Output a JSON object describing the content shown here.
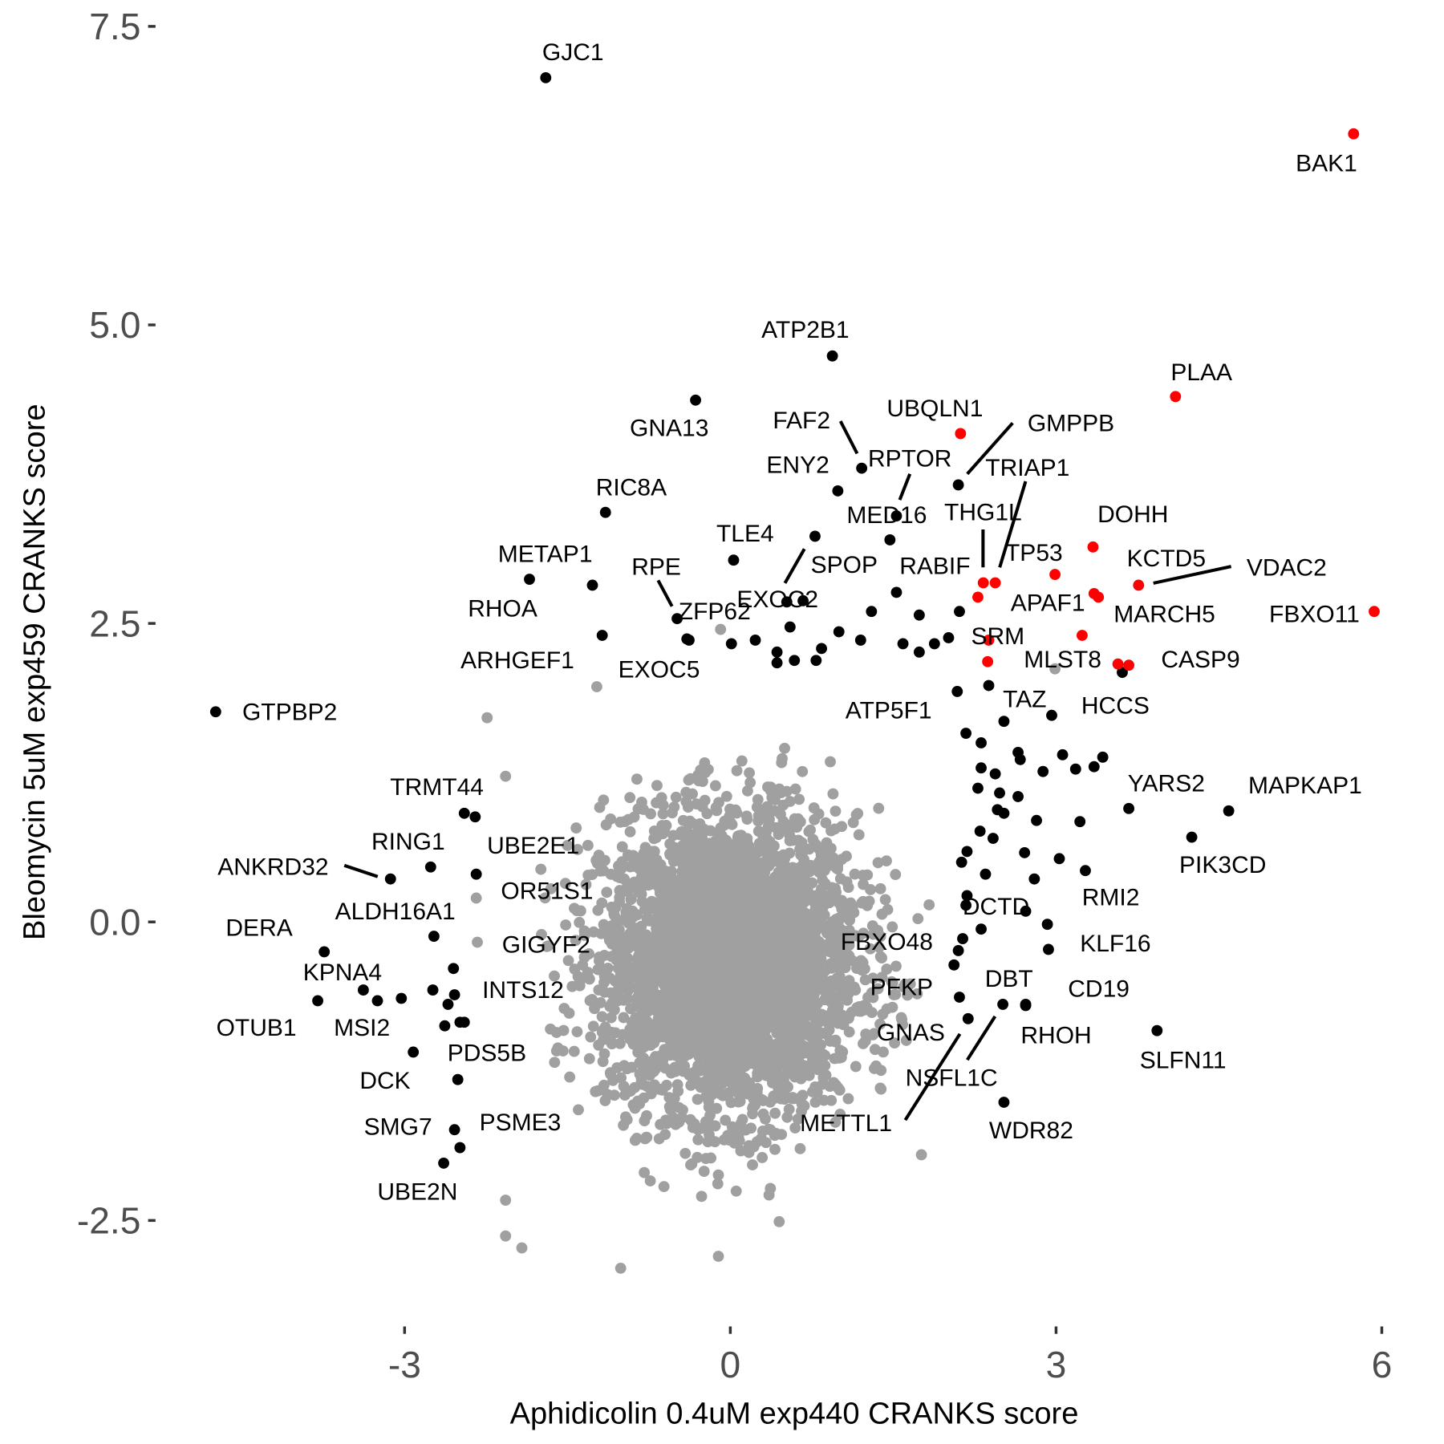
{
  "chart_data": {
    "type": "scatter",
    "title": "",
    "xlabel": "Aphidicolin 0.4uM exp440 CRANKS score",
    "ylabel": "Bleomycin 5uM exp459 CRANKS score",
    "xlim": [
      -5.0,
      6.1
    ],
    "ylim": [
      -3.35,
      7.6
    ],
    "x_ticks": [
      -3,
      0,
      3,
      6
    ],
    "x_tick_labels": [
      "-3",
      "0",
      "3",
      "6"
    ],
    "y_ticks": [
      -2.5,
      0,
      2.5,
      5,
      7.5
    ],
    "y_tick_labels": [
      "-2.5",
      "0.0",
      "2.5",
      "5.0",
      "7.5"
    ],
    "grid": false,
    "legend": "none",
    "colors": {
      "background_genes": "#a0a0a0",
      "hit_genes": "#000000",
      "highlighted_genes": "#ff0000",
      "axis_text": "#4d4d4d"
    },
    "labeled_points": [
      {
        "label": "GJC1",
        "x": -1.7,
        "y": 7.07,
        "color": "black"
      },
      {
        "label": "BAK1",
        "x": 5.74,
        "y": 6.6,
        "color": "red"
      },
      {
        "label": "ATP2B1",
        "x": 0.94,
        "y": 4.74,
        "color": "black"
      },
      {
        "label": "GNA13",
        "x": -0.32,
        "y": 4.37,
        "color": "black"
      },
      {
        "label": "PLAA",
        "x": 4.1,
        "y": 4.4,
        "color": "red"
      },
      {
        "label": "UBQLN1",
        "x": 2.12,
        "y": 4.09,
        "color": "red"
      },
      {
        "label": "FAF2",
        "x": 1.21,
        "y": 3.8,
        "color": "black"
      },
      {
        "label": "GMPPB",
        "x": 2.1,
        "y": 3.66,
        "color": "black"
      },
      {
        "label": "RPTOR",
        "x": 1.53,
        "y": 3.4,
        "color": "black"
      },
      {
        "label": "ENY2",
        "x": 0.99,
        "y": 3.61,
        "color": "black"
      },
      {
        "label": "MED16",
        "x": 1.47,
        "y": 3.2,
        "color": "black"
      },
      {
        "label": "RIC8A",
        "x": -1.15,
        "y": 3.43,
        "color": "black"
      },
      {
        "label": "TLE4",
        "x": 0.03,
        "y": 3.03,
        "color": "black"
      },
      {
        "label": "SPOP",
        "x": 0.78,
        "y": 3.23,
        "color": "black"
      },
      {
        "label": "EXOC2",
        "x": 0.52,
        "y": 2.68,
        "color": "black"
      },
      {
        "label": "RABIF",
        "x": 1.53,
        "y": 2.76,
        "color": "black"
      },
      {
        "label": "TRIAP1",
        "x": 2.44,
        "y": 2.84,
        "color": "red"
      },
      {
        "label": "THG1L",
        "x": 2.33,
        "y": 2.84,
        "color": "red"
      },
      {
        "label": "TP53",
        "x": 2.99,
        "y": 2.91,
        "color": "red"
      },
      {
        "label": "DOHH",
        "x": 3.34,
        "y": 3.14,
        "color": "red"
      },
      {
        "label": "VDAC2",
        "x": 3.76,
        "y": 2.82,
        "color": "red"
      },
      {
        "label": "KCTD5",
        "x": 3.39,
        "y": 2.72,
        "color": "red"
      },
      {
        "label": "MARCH5",
        "x": 3.35,
        "y": 2.75,
        "color": "red"
      },
      {
        "label": "APAF1",
        "x": 2.28,
        "y": 2.72,
        "color": "red"
      },
      {
        "label": "FBXO11",
        "x": 5.93,
        "y": 2.6,
        "color": "red"
      },
      {
        "label": "SRM",
        "x": 2.38,
        "y": 2.36,
        "color": "red"
      },
      {
        "label": "MLST8",
        "x": 2.37,
        "y": 2.18,
        "color": "red"
      },
      {
        "label": "CASP9",
        "x": 3.57,
        "y": 2.16,
        "color": "red"
      },
      {
        "label": "HCCS",
        "x": 2.96,
        "y": 1.73,
        "color": "black"
      },
      {
        "label": "TAZ",
        "x": 2.38,
        "y": 1.98,
        "color": "black"
      },
      {
        "label": "ATP5F1",
        "x": 2.09,
        "y": 1.93,
        "color": "black"
      },
      {
        "label": "YARS2",
        "x": 3.67,
        "y": 0.95,
        "color": "black"
      },
      {
        "label": "MAPKAP1",
        "x": 4.59,
        "y": 0.93,
        "color": "black"
      },
      {
        "label": "PIK3CD",
        "x": 4.25,
        "y": 0.71,
        "color": "black"
      },
      {
        "label": "RMI2",
        "x": 3.27,
        "y": 0.43,
        "color": "black"
      },
      {
        "label": "DCTD",
        "x": 2.72,
        "y": 0.09,
        "color": "black"
      },
      {
        "label": "KLF16",
        "x": 2.92,
        "y": -0.02,
        "color": "black"
      },
      {
        "label": "CD19",
        "x": 2.93,
        "y": -0.23,
        "color": "black"
      },
      {
        "label": "FBXO48",
        "x": 2.1,
        "y": -0.24,
        "color": "black"
      },
      {
        "label": "PFKP",
        "x": 2.06,
        "y": -0.36,
        "color": "black"
      },
      {
        "label": "GNAS",
        "x": 2.11,
        "y": -0.63,
        "color": "black"
      },
      {
        "label": "METTL1",
        "x": 2.19,
        "y": -0.81,
        "color": "black"
      },
      {
        "label": "DBT",
        "x": 2.72,
        "y": -0.69,
        "color": "black"
      },
      {
        "label": "NSFL1C",
        "x": 2.51,
        "y": -0.69,
        "color": "black"
      },
      {
        "label": "RHOH",
        "x": 2.72,
        "y": -0.7,
        "color": "black"
      },
      {
        "label": "WDR82",
        "x": 2.52,
        "y": -1.51,
        "color": "black"
      },
      {
        "label": "SLFN11",
        "x": 3.93,
        "y": -0.91,
        "color": "black"
      },
      {
        "label": "GTPBP2",
        "x": -4.74,
        "y": 1.76,
        "color": "black"
      },
      {
        "label": "METAP1",
        "x": -1.85,
        "y": 2.87,
        "color": "black"
      },
      {
        "label": "RHOA",
        "x": -1.27,
        "y": 2.82,
        "color": "black"
      },
      {
        "label": "RPE",
        "x": -0.49,
        "y": 2.54,
        "color": "black"
      },
      {
        "label": "ZFP62",
        "x": -0.4,
        "y": 2.37,
        "color": "black"
      },
      {
        "label": "ARHGEF1",
        "x": -1.18,
        "y": 2.4,
        "color": "black"
      },
      {
        "label": "EXOC5",
        "x": -0.38,
        "y": 2.36,
        "color": "black"
      },
      {
        "label": "TRMT44",
        "x": -2.45,
        "y": 0.91,
        "color": "black"
      },
      {
        "label": "RING1",
        "x": -2.76,
        "y": 0.46,
        "color": "black"
      },
      {
        "label": "ANKRD32",
        "x": -3.13,
        "y": 0.36,
        "color": "black"
      },
      {
        "label": "UBE2E1",
        "x": -2.34,
        "y": 0.4,
        "color": "black"
      },
      {
        "label": "OR51S1",
        "x": -2.34,
        "y": 0.2,
        "color": "gray"
      },
      {
        "label": "ALDH16A1",
        "x": -2.73,
        "y": -0.12,
        "color": "black"
      },
      {
        "label": "DERA",
        "x": -3.74,
        "y": -0.25,
        "color": "black"
      },
      {
        "label": "GIGYF2",
        "x": -2.33,
        "y": -0.17,
        "color": "gray"
      },
      {
        "label": "KPNA4",
        "x": -3.38,
        "y": -0.57,
        "color": "black"
      },
      {
        "label": "INTS12",
        "x": -2.54,
        "y": -0.61,
        "color": "black"
      },
      {
        "label": "OTUB1",
        "x": -3.8,
        "y": -0.66,
        "color": "black"
      },
      {
        "label": "MSI2",
        "x": -3.25,
        "y": -0.66,
        "color": "black"
      },
      {
        "label": "DCK",
        "x": -2.92,
        "y": -1.09,
        "color": "black"
      },
      {
        "label": "PDS5B",
        "x": -2.49,
        "y": -0.84,
        "color": "black"
      },
      {
        "label": "SMG7",
        "x": -2.54,
        "y": -1.74,
        "color": "black"
      },
      {
        "label": "PSME3",
        "x": -2.49,
        "y": -1.89,
        "color": "black"
      },
      {
        "label": "UBE2N",
        "x": -2.64,
        "y": -2.02,
        "color": "black"
      }
    ],
    "unlabeled_red_points": [
      {
        "x": 3.24,
        "y": 2.4
      },
      {
        "x": 3.67,
        "y": 2.15
      }
    ],
    "unlabeled_black_points": [
      {
        "x": 3.61,
        "y": 2.09
      },
      {
        "x": 2.11,
        "y": 2.6
      },
      {
        "x": 1.74,
        "y": 2.57
      },
      {
        "x": 2.01,
        "y": 2.38
      },
      {
        "x": 1.88,
        "y": 2.33
      },
      {
        "x": 1.74,
        "y": 2.26
      },
      {
        "x": 1.59,
        "y": 2.33
      },
      {
        "x": 1.2,
        "y": 2.36
      },
      {
        "x": 1.0,
        "y": 2.43
      },
      {
        "x": 1.3,
        "y": 2.6
      },
      {
        "x": 0.84,
        "y": 2.29
      },
      {
        "x": 0.79,
        "y": 2.19
      },
      {
        "x": 0.59,
        "y": 2.19
      },
      {
        "x": 0.43,
        "y": 2.17
      },
      {
        "x": 0.43,
        "y": 2.26
      },
      {
        "x": 0.23,
        "y": 2.36
      },
      {
        "x": 0.01,
        "y": 2.33
      },
      {
        "x": 0.55,
        "y": 2.47
      },
      {
        "x": 0.67,
        "y": 2.69
      },
      {
        "x": 2.17,
        "y": 1.58
      },
      {
        "x": 2.31,
        "y": 1.5
      },
      {
        "x": 2.52,
        "y": 1.68
      },
      {
        "x": 2.65,
        "y": 1.42
      },
      {
        "x": 2.67,
        "y": 1.36
      },
      {
        "x": 2.88,
        "y": 1.26
      },
      {
        "x": 3.06,
        "y": 1.4
      },
      {
        "x": 3.18,
        "y": 1.28
      },
      {
        "x": 3.43,
        "y": 1.38
      },
      {
        "x": 3.35,
        "y": 1.3
      },
      {
        "x": 2.31,
        "y": 1.29
      },
      {
        "x": 2.44,
        "y": 1.24
      },
      {
        "x": 2.28,
        "y": 1.12
      },
      {
        "x": 2.48,
        "y": 1.08
      },
      {
        "x": 2.65,
        "y": 1.05
      },
      {
        "x": 2.46,
        "y": 0.94
      },
      {
        "x": 2.52,
        "y": 0.91
      },
      {
        "x": 2.82,
        "y": 0.85
      },
      {
        "x": 3.22,
        "y": 0.84
      },
      {
        "x": 2.42,
        "y": 0.7
      },
      {
        "x": 2.3,
        "y": 0.76
      },
      {
        "x": 2.18,
        "y": 0.59
      },
      {
        "x": 2.13,
        "y": 0.5
      },
      {
        "x": 2.35,
        "y": 0.4
      },
      {
        "x": 2.71,
        "y": 0.58
      },
      {
        "x": 2.8,
        "y": 0.36
      },
      {
        "x": 3.03,
        "y": 0.53
      },
      {
        "x": 2.18,
        "y": 0.22
      },
      {
        "x": 2.17,
        "y": 0.14
      },
      {
        "x": 2.14,
        "y": -0.14
      },
      {
        "x": 2.31,
        "y": -0.06
      },
      {
        "x": -3.03,
        "y": -0.64
      },
      {
        "x": -2.74,
        "y": -0.57
      },
      {
        "x": -2.6,
        "y": -0.69
      },
      {
        "x": -2.55,
        "y": -0.39
      },
      {
        "x": -2.63,
        "y": -0.87
      },
      {
        "x": -2.45,
        "y": -0.84
      },
      {
        "x": -2.51,
        "y": -1.32
      },
      {
        "x": -2.35,
        "y": 0.88
      }
    ],
    "gray_outlier_points": [
      {
        "x": -2.24,
        "y": 1.71
      },
      {
        "x": -1.01,
        "y": -2.9
      },
      {
        "x": -0.11,
        "y": -2.8
      },
      {
        "x": -2.07,
        "y": -2.63
      },
      {
        "x": -1.92,
        "y": -2.73
      },
      {
        "x": -2.07,
        "y": -2.33
      },
      {
        "x": -1.23,
        "y": 1.97
      },
      {
        "x": -0.09,
        "y": 2.45
      },
      {
        "x": 1.76,
        "y": -1.95
      },
      {
        "x": 2.99,
        "y": 2.12
      },
      {
        "x": -2.07,
        "y": 1.22
      },
      {
        "x": 0.45,
        "y": -2.51
      }
    ]
  }
}
